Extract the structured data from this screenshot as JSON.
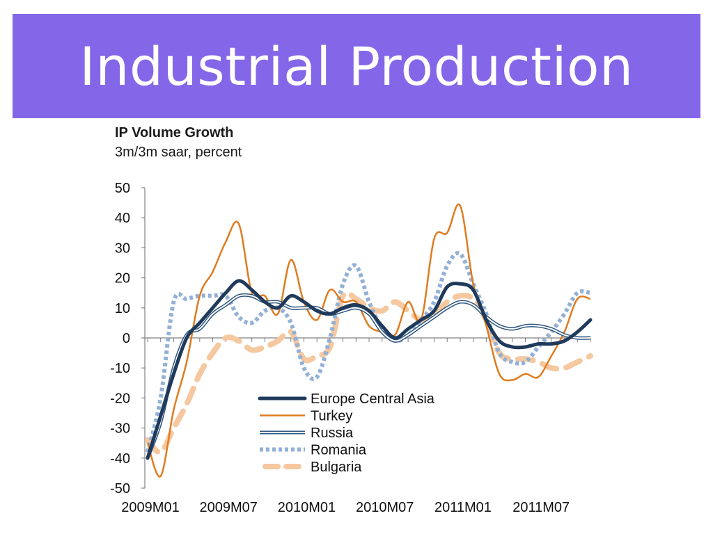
{
  "slide": {
    "title": "Industrial Production"
  },
  "chart_data": {
    "type": "line",
    "title": "IP Volume Growth",
    "subtitle": "3m/3m saar, percent",
    "xlabel": "",
    "ylabel": "",
    "ylim": [
      -50,
      50
    ],
    "yticks": [
      50,
      40,
      30,
      20,
      10,
      0,
      -10,
      -20,
      -30,
      -40,
      -50
    ],
    "xticks": [
      "2009M01",
      "2009M07",
      "2010M01",
      "2010M07",
      "2011M01",
      "2011M07"
    ],
    "x": [
      "2009M01",
      "2009M02",
      "2009M03",
      "2009M04",
      "2009M05",
      "2009M06",
      "2009M07",
      "2009M08",
      "2009M09",
      "2009M10",
      "2009M11",
      "2009M12",
      "2010M01",
      "2010M02",
      "2010M03",
      "2010M04",
      "2010M05",
      "2010M06",
      "2010M07",
      "2010M08",
      "2010M09",
      "2010M10",
      "2010M11",
      "2010M12",
      "2011M01",
      "2011M02",
      "2011M03",
      "2011M04",
      "2011M05",
      "2011M06",
      "2011M07",
      "2011M08",
      "2011M09",
      "2011M10",
      "2011M11"
    ],
    "series": [
      {
        "name": "Europe Central Asia",
        "color": "#1f3a5a",
        "style": "thick-solid",
        "values": [
          -40,
          -26,
          -12,
          0,
          5,
          10,
          15,
          19,
          16,
          12,
          10,
          14,
          12,
          9,
          8,
          10,
          11,
          9,
          4,
          0,
          3,
          6,
          9,
          17,
          18,
          16,
          6,
          -1,
          -3,
          -3,
          -2,
          -2,
          -1,
          2,
          6
        ]
      },
      {
        "name": "Turkey",
        "color": "#e07b1f",
        "style": "solid",
        "values": [
          -35,
          -46,
          -24,
          -8,
          14,
          22,
          32,
          38,
          15,
          14,
          8,
          26,
          12,
          6,
          16,
          12,
          12,
          4,
          2,
          1,
          12,
          6,
          33,
          35,
          44,
          18,
          4,
          -12,
          -14,
          -12,
          -13,
          -6,
          2,
          13,
          13
        ]
      },
      {
        "name": "Russia",
        "color": "#2d5680",
        "style": "double",
        "values": [
          -40,
          -28,
          -10,
          1,
          3,
          8,
          11,
          14,
          14,
          12,
          12,
          10,
          10,
          10,
          8,
          9,
          10,
          8,
          2,
          -1,
          1,
          4,
          7,
          10,
          12,
          11,
          7,
          4,
          3,
          4,
          4,
          3,
          1,
          0,
          0
        ]
      },
      {
        "name": "Romania",
        "color": "#93b1d6",
        "style": "dotted",
        "values": [
          -38,
          -20,
          12,
          13,
          14,
          14,
          14,
          7,
          5,
          9,
          10,
          5,
          -10,
          -13,
          0,
          18,
          24,
          12,
          3,
          -1,
          1,
          6,
          12,
          24,
          28,
          18,
          8,
          -5,
          -8,
          -8,
          -3,
          2,
          8,
          15,
          15
        ]
      },
      {
        "name": "Bulgaria",
        "color": "#f5c8a0",
        "style": "dashed",
        "values": [
          -34,
          -38,
          -30,
          -22,
          -12,
          -5,
          0,
          -1,
          -4,
          -3,
          -1,
          2,
          -7,
          -6,
          -3,
          14,
          13,
          10,
          9,
          12,
          9,
          6,
          8,
          12,
          14,
          13,
          6,
          -5,
          -7,
          -7,
          -8,
          -10,
          -10,
          -8,
          -6
        ]
      }
    ],
    "legend": "lower-center",
    "grid": false
  }
}
